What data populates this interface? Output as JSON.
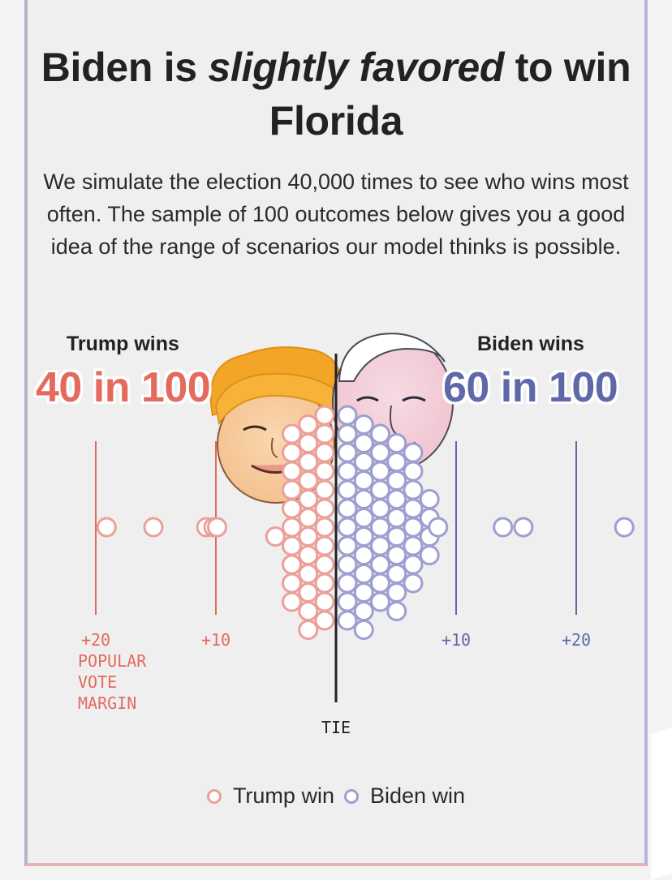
{
  "headline": {
    "part1": "Biden is ",
    "emphasis": "slightly favored",
    "part2": " to win Florida"
  },
  "subhead": "We simulate the election 40,000 times to see who wins most often. The sample of 100 outcomes below gives you a good idea of the range of scenarios our model thinks is possible.",
  "trump": {
    "label": "Trump wins",
    "count": "40 in 100",
    "color": "#e46a5e",
    "dot_color": "#eba09a"
  },
  "biden": {
    "label": "Biden wins",
    "count": "60 in 100",
    "color": "#5f68a9",
    "dot_color": "#9d9fd0"
  },
  "chart_data": {
    "type": "scatter",
    "title": "",
    "xlabel": "POPULAR VOTE MARGIN",
    "ylabel": "",
    "x_range": [
      -24,
      24
    ],
    "center_label": "TIE",
    "ticks": [
      {
        "value": -20,
        "label": "+20",
        "side": "trump"
      },
      {
        "value": -10,
        "label": "+10",
        "side": "trump"
      },
      {
        "value": 10,
        "label": "+10",
        "side": "biden"
      },
      {
        "value": 20,
        "label": "+20",
        "side": "biden"
      }
    ],
    "axis_caption_lines": [
      "POPULAR",
      "VOTE",
      "MARGIN"
    ],
    "series": [
      {
        "name": "Trump win",
        "count": 40,
        "outliers": [
          -19.1,
          -15.2,
          -10.8,
          -10.2,
          -9.9
        ]
      },
      {
        "name": "Biden win",
        "count": 60,
        "outliers": [
          8.5,
          13.9,
          15.6,
          24.0
        ]
      }
    ]
  },
  "legend": {
    "trump_label": "Trump win",
    "biden_label": "Biden win"
  }
}
